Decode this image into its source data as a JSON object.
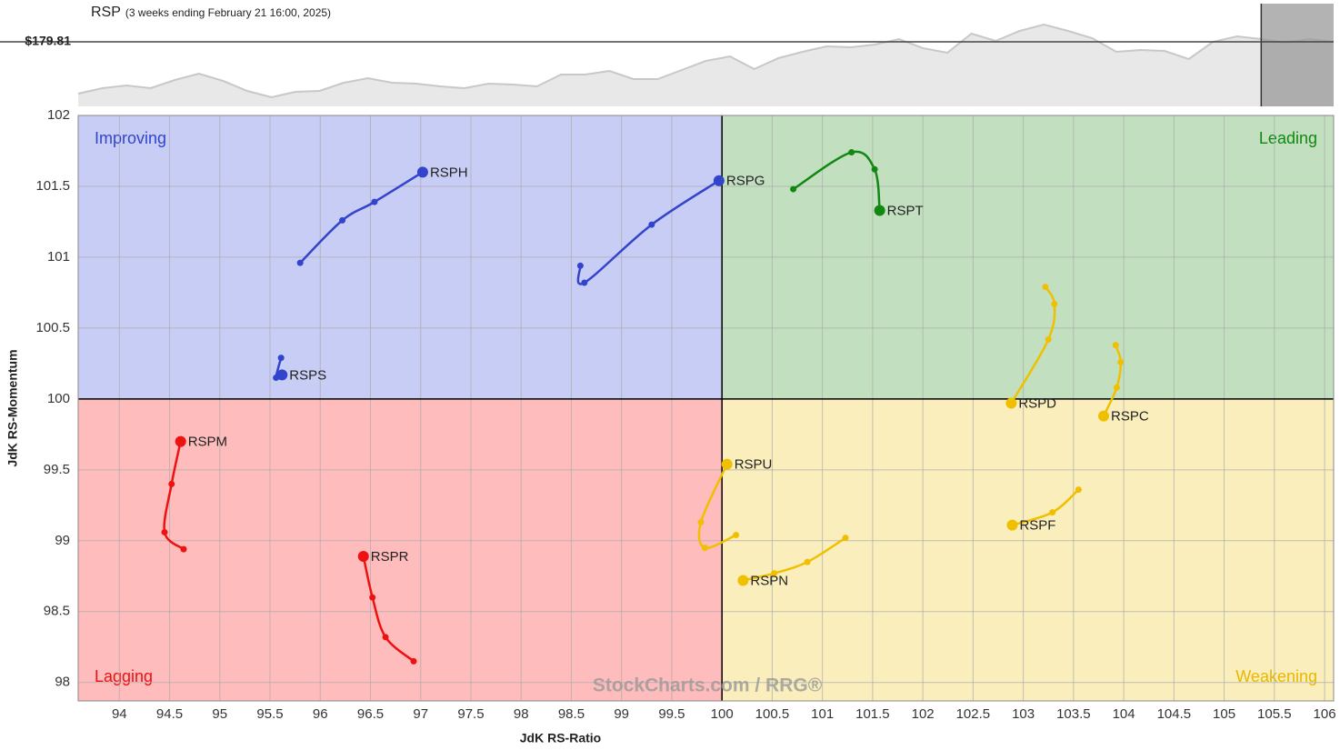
{
  "chart_data": [
    {
      "type": "line",
      "title": "RSP",
      "subtitle": "(3 weeks ending February 21 16:00, 2025)",
      "values": [
        174.11,
        174.71,
        175.01,
        174.71,
        175.61,
        176.31,
        175.51,
        174.41,
        173.71,
        174.31,
        174.41,
        175.31,
        175.81,
        175.31,
        175.21,
        174.91,
        174.71,
        175.21,
        175.11,
        174.91,
        176.21,
        176.21,
        176.61,
        175.71,
        175.71,
        176.71,
        177.71,
        178.21,
        176.81,
        178.01,
        178.71,
        179.31,
        179.21,
        179.51,
        180.11,
        179.11,
        178.61,
        180.71,
        179.91,
        181.01,
        181.71,
        181.01,
        180.21,
        178.71,
        178.91,
        178.81,
        177.91,
        179.81,
        180.41,
        180.11,
        179.71,
        180.11,
        179.81
      ],
      "color": "#c8c8c8",
      "fill": "#e8e8e8",
      "ylim": [
        172.71,
        184.41
      ],
      "reference": 179.81,
      "reference_label": "$179.81",
      "highlight_from": 49,
      "highlight_color": "#999999"
    },
    {
      "type": "rrg",
      "xlabel": "JdK RS-Ratio",
      "ylabel": "JdK RS-Momentum",
      "xlim": [
        93.59,
        106.09
      ],
      "ylim": [
        97.87,
        102
      ],
      "xticks": [
        94,
        94.5,
        95,
        95.5,
        96,
        96.5,
        97,
        97.5,
        98,
        98.5,
        99,
        99.5,
        100,
        100.5,
        101,
        101.5,
        102,
        102.5,
        103,
        103.5,
        104,
        104.5,
        105,
        105.5,
        106
      ],
      "yticks": [
        98,
        98.5,
        99,
        99.5,
        100,
        100.5,
        101,
        101.5,
        102
      ],
      "grid": true,
      "center": [
        100,
        100
      ],
      "quadrants": [
        {
          "name": "Improving",
          "corner": "top-left",
          "color": "#c8cdf5",
          "label_color": "#3344cc"
        },
        {
          "name": "Leading",
          "corner": "top-right",
          "color": "#c2e0c0",
          "label_color": "#118811"
        },
        {
          "name": "Lagging",
          "corner": "bottom-left",
          "color": "#ffbcbc",
          "label_color": "#ee1111"
        },
        {
          "name": "Weakening",
          "corner": "bottom-right",
          "color": "#faefbc",
          "label_color": "#e8b800"
        }
      ],
      "watermark": "StockCharts.com / RRG®",
      "series": [
        {
          "name": "RSPH",
          "color": "#3344cc",
          "x": [
            95.8,
            96.22,
            96.54,
            97.02
          ],
          "values": [
            100.96,
            101.26,
            101.39,
            101.6
          ]
        },
        {
          "name": "RSPG",
          "color": "#3344cc",
          "x": [
            98.59,
            98.63,
            99.3,
            99.97
          ],
          "values": [
            100.94,
            100.82,
            101.23,
            101.54
          ]
        },
        {
          "name": "RSPS",
          "color": "#3344cc",
          "x": [
            95.61,
            95.56,
            95.62
          ],
          "values": [
            100.29,
            100.15,
            100.17
          ]
        },
        {
          "name": "RSPT",
          "color": "#118811",
          "x": [
            100.71,
            101.29,
            101.52,
            101.57
          ],
          "values": [
            101.48,
            101.74,
            101.62,
            101.33
          ]
        },
        {
          "name": "RSPD",
          "color": "#f0c000",
          "x": [
            103.22,
            103.31,
            103.25,
            102.88
          ],
          "values": [
            100.79,
            100.67,
            100.42,
            99.97
          ]
        },
        {
          "name": "RSPC",
          "color": "#f0c000",
          "x": [
            103.92,
            103.97,
            103.93,
            103.8
          ],
          "values": [
            100.38,
            100.26,
            100.08,
            99.88
          ]
        },
        {
          "name": "RSPU",
          "color": "#f0c000",
          "x": [
            100.14,
            99.83,
            99.79,
            100.05
          ],
          "values": [
            99.04,
            98.95,
            99.13,
            99.54
          ]
        },
        {
          "name": "RSPF",
          "color": "#f0c000",
          "x": [
            103.55,
            103.29,
            102.89
          ],
          "values": [
            99.36,
            99.2,
            99.11
          ]
        },
        {
          "name": "RSPN",
          "color": "#f0c000",
          "x": [
            101.23,
            100.85,
            100.52,
            100.21
          ],
          "values": [
            99.02,
            98.85,
            98.77,
            98.72
          ]
        },
        {
          "name": "RSPM",
          "color": "#ee1111",
          "x": [
            94.64,
            94.45,
            94.52,
            94.61
          ],
          "values": [
            98.94,
            99.06,
            99.4,
            99.7
          ]
        },
        {
          "name": "RSPR",
          "color": "#ee1111",
          "x": [
            96.93,
            96.65,
            96.52,
            96.43
          ],
          "values": [
            98.15,
            98.32,
            98.6,
            98.89
          ]
        }
      ]
    }
  ]
}
